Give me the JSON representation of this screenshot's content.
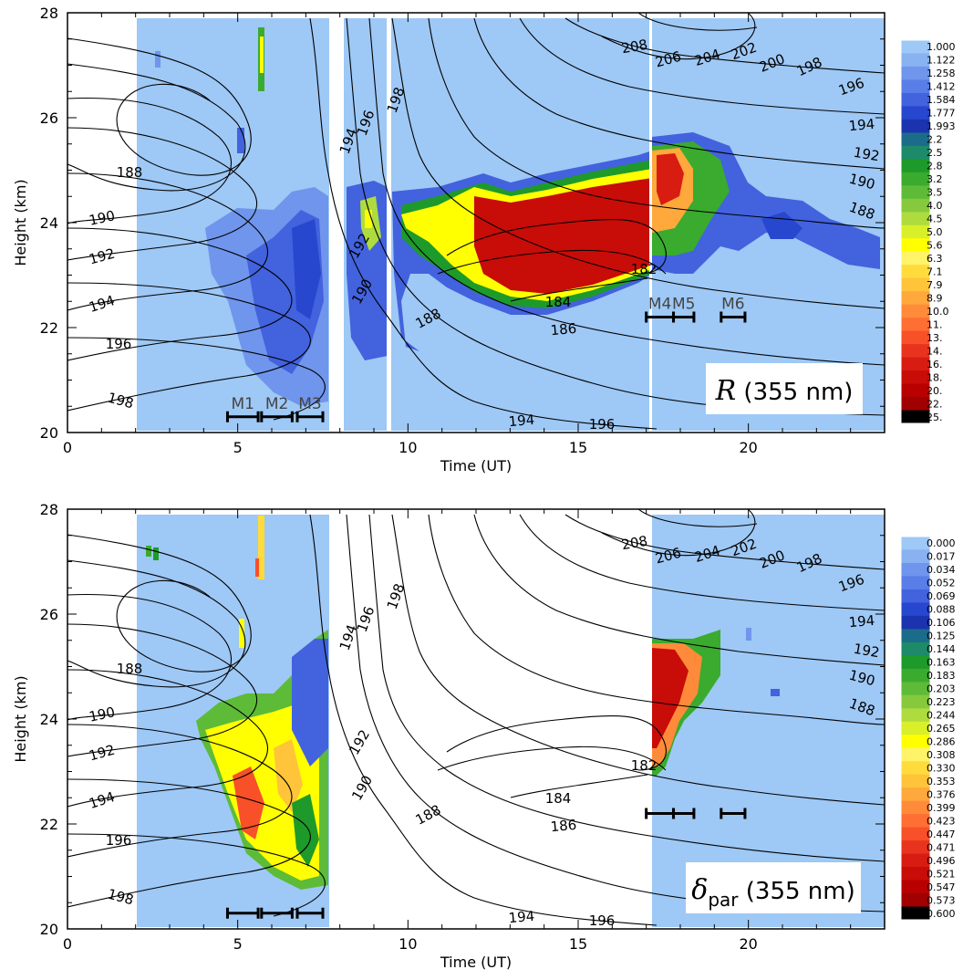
{
  "chart_data": [
    {
      "type": "heatmap",
      "xlabel": "Time (UT)",
      "ylabel": "Height (km)",
      "xlim": [
        0,
        24
      ],
      "ylim": [
        20,
        28
      ],
      "xticks": [
        "0",
        "5",
        "10",
        "15",
        "20"
      ],
      "yticks": [
        "20",
        "22",
        "24",
        "26",
        "28"
      ],
      "tag": {
        "symbol": "R",
        "suffix": "(355 nm)"
      },
      "colorbar": [
        "1.000",
        "1.122",
        "1.258",
        "1.412",
        "1.584",
        "1.777",
        "1.993",
        "2.2",
        "2.5",
        "2.8",
        "3.2",
        "3.5",
        "4.0",
        "4.5",
        "5.0",
        "5.6",
        "6.3",
        "7.1",
        "7.9",
        "8.9",
        "10.0",
        "11.",
        "13.",
        "14.",
        "16.",
        "18.",
        "20.",
        "22.",
        "25."
      ],
      "colors": [
        "#9ec8f5",
        "#88b2f0",
        "#6f95ec",
        "#5a7ee8",
        "#4262de",
        "#2747cf",
        "#1c33b0",
        "#1b6c8a",
        "#1d8a6a",
        "#1e9a2a",
        "#3aab2e",
        "#5dbb38",
        "#86c93c",
        "#aedb3e",
        "#d9ef2a",
        "#ffff00",
        "#fff36a",
        "#ffdc3c",
        "#ffc43a",
        "#ffa83c",
        "#ff8b3a",
        "#ff6e32",
        "#f85028",
        "#e8341e",
        "#d81c12",
        "#c80c08",
        "#b80000",
        "#a00000",
        "#000000"
      ],
      "segments": [
        {
          "label": "M1",
          "x_start": 4.7,
          "x_end": 5.6
        },
        {
          "label": "M2",
          "x_start": 5.7,
          "x_end": 6.6
        },
        {
          "label": "M3",
          "x_start": 6.75,
          "x_end": 7.5
        },
        {
          "label": "M4",
          "x_start": 17.0,
          "x_end": 17.8
        },
        {
          "label": "M5",
          "x_start": 17.8,
          "x_end": 18.4
        },
        {
          "label": "M6",
          "x_start": 19.2,
          "x_end": 19.9
        }
      ],
      "contour_labels": [
        "188",
        "190",
        "192",
        "194",
        "196",
        "198",
        "194",
        "196",
        "198",
        "192",
        "190",
        "188",
        "186",
        "184",
        "182",
        "194",
        "196",
        "208",
        "206",
        "204",
        "202",
        "200",
        "198",
        "196",
        "194",
        "192",
        "190",
        "188"
      ]
    },
    {
      "type": "heatmap",
      "xlabel": "Time (UT)",
      "ylabel": "Height (km)",
      "xlim": [
        0,
        24
      ],
      "ylim": [
        20,
        28
      ],
      "xticks": [
        "0",
        "5",
        "10",
        "15",
        "20"
      ],
      "yticks": [
        "20",
        "22",
        "24",
        "26",
        "28"
      ],
      "tag": {
        "symbol": "δ",
        "subscript": "par",
        "suffix": "(355 nm)"
      },
      "colorbar": [
        "0.000",
        "0.017",
        "0.034",
        "0.052",
        "0.069",
        "0.088",
        "0.106",
        "0.125",
        "0.144",
        "0.163",
        "0.183",
        "0.203",
        "0.223",
        "0.244",
        "0.265",
        "0.286",
        "0.308",
        "0.330",
        "0.353",
        "0.376",
        "0.399",
        "0.423",
        "0.447",
        "0.471",
        "0.496",
        "0.521",
        "0.547",
        "0.573",
        "0.600"
      ],
      "colors": [
        "#9ec8f5",
        "#88b2f0",
        "#6f95ec",
        "#5a7ee8",
        "#4262de",
        "#2747cf",
        "#1c33b0",
        "#1b6c8a",
        "#1d8a6a",
        "#1e9a2a",
        "#3aab2e",
        "#5dbb38",
        "#86c93c",
        "#aedb3e",
        "#d9ef2a",
        "#ffff00",
        "#fff36a",
        "#ffdc3c",
        "#ffc43a",
        "#ffa83c",
        "#ff8b3a",
        "#ff6e32",
        "#f85028",
        "#e8341e",
        "#d81c12",
        "#c80c08",
        "#b80000",
        "#a00000",
        "#000000"
      ],
      "segments": [
        {
          "label": "",
          "x_start": 4.7,
          "x_end": 5.6
        },
        {
          "label": "",
          "x_start": 5.7,
          "x_end": 6.6
        },
        {
          "label": "",
          "x_start": 6.75,
          "x_end": 7.5
        },
        {
          "label": "",
          "x_start": 17.0,
          "x_end": 17.8
        },
        {
          "label": "",
          "x_start": 17.8,
          "x_end": 18.4
        },
        {
          "label": "",
          "x_start": 19.2,
          "x_end": 19.9
        }
      ],
      "contour_labels": [
        "188",
        "190",
        "192",
        "194",
        "196",
        "198",
        "194",
        "196",
        "198",
        "192",
        "190",
        "188",
        "186",
        "184",
        "182",
        "194",
        "196",
        "208",
        "206",
        "204",
        "202",
        "200",
        "198",
        "196",
        "194",
        "192",
        "190",
        "188"
      ]
    }
  ]
}
